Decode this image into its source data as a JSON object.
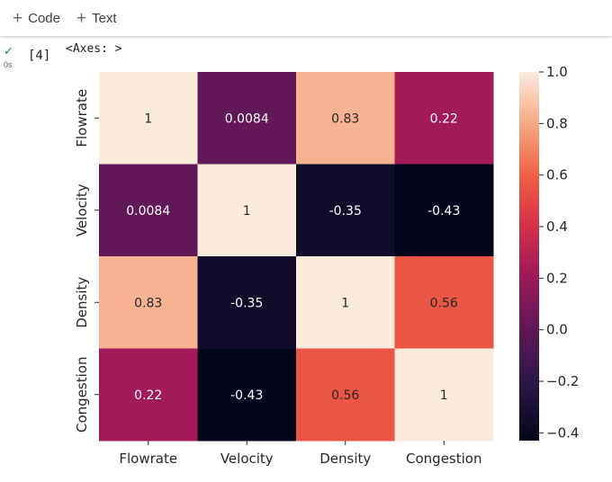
{
  "toolbar": {
    "code_label": "Code",
    "text_label": "Text",
    "plus_glyph": "+"
  },
  "cell": {
    "status_icon": "check-icon",
    "status_glyph": "✓",
    "exec_time": "0s",
    "exec_count": "[4]",
    "output_text": "<Axes: >"
  },
  "chart_data": {
    "type": "heatmap",
    "rows": [
      "Flowrate",
      "Velocity",
      "Density",
      "Congestion"
    ],
    "columns": [
      "Flowrate",
      "Velocity",
      "Density",
      "Congestion"
    ],
    "values": [
      [
        1,
        0.0084,
        0.83,
        0.22
      ],
      [
        0.0084,
        1,
        -0.35,
        -0.43
      ],
      [
        0.83,
        -0.35,
        1,
        0.56
      ],
      [
        0.22,
        -0.43,
        0.56,
        1
      ]
    ],
    "labels": [
      [
        "1",
        "0.0084",
        "0.83",
        "0.22"
      ],
      [
        "0.0084",
        "1",
        "-0.35",
        "-0.43"
      ],
      [
        "0.83",
        "-0.35",
        "1",
        "0.56"
      ],
      [
        "0.22",
        "-0.43",
        "0.56",
        "1"
      ]
    ],
    "colorbar": {
      "range": [
        -0.43,
        1.0
      ],
      "ticks": [
        1.0,
        0.8,
        0.6,
        0.4,
        0.2,
        0.0,
        -0.2,
        -0.4
      ],
      "tick_labels": [
        "1.0",
        "0.8",
        "0.6",
        "0.4",
        "0.2",
        "0.0",
        "−0.2",
        "−0.4"
      ],
      "colormap": "rocket"
    },
    "title": "",
    "xlabel": "",
    "ylabel": ""
  }
}
